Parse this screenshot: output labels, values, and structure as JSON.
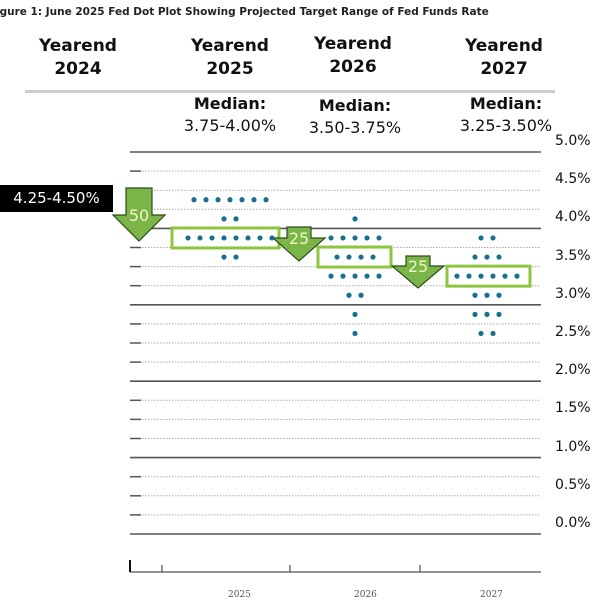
{
  "title": "igure 1: June 2025 Fed Dot Plot Showing Projected Target Range of Fed Funds Rate",
  "headers": [
    {
      "line1": "Yearend",
      "line2": "2024"
    },
    {
      "line1": "Yearend",
      "line2": "2025",
      "median_label": "Median:",
      "median": "3.75-4.00%"
    },
    {
      "line1": "Yearend",
      "line2": "2026",
      "median_label": "Median:",
      "median": "3.50-3.75%"
    },
    {
      "line1": "Yearend",
      "line2": "2027",
      "median_label": "Median:",
      "median": "3.25-3.50%"
    }
  ],
  "current_range": "4.25-4.50%",
  "arrows": [
    "50",
    "25",
    "25"
  ],
  "colors": {
    "dot": "#1b6f8e",
    "green": "#8cc63f",
    "arrow": "#7bb547"
  },
  "chart_data": {
    "type": "scatter",
    "title": "June 2025 Fed Dot Plot Showing Projected Target Range of Fed Funds Rate",
    "ylabel": "",
    "xlabel": "",
    "ylim": [
      0,
      5
    ],
    "ytick_labels": [
      "5.0%",
      "4.5%",
      "4.0%",
      "3.5%",
      "3.0%",
      "2.5%",
      "2.0%",
      "1.5%",
      "1.0%",
      "0.5%",
      "0.0%"
    ],
    "yticks": [
      5,
      4.5,
      4,
      3.5,
      3,
      2.5,
      2,
      1.5,
      1,
      0.5,
      0
    ],
    "categories": [
      "2025",
      "2026",
      "2027"
    ],
    "dots": [
      {
        "year": "2025",
        "counts": [
          [
            4.375,
            7
          ],
          [
            4.125,
            2
          ],
          [
            3.875,
            8
          ],
          [
            3.625,
            2
          ]
        ],
        "median": 3.875
      },
      {
        "year": "2026",
        "counts": [
          [
            4.125,
            1
          ],
          [
            3.875,
            5
          ],
          [
            3.625,
            4
          ],
          [
            3.375,
            5
          ],
          [
            3.125,
            2
          ],
          [
            2.875,
            1
          ],
          [
            2.625,
            1
          ]
        ],
        "median": 3.625
      },
      {
        "year": "2027",
        "counts": [
          [
            3.875,
            2
          ],
          [
            3.625,
            3
          ],
          [
            3.375,
            6
          ],
          [
            3.125,
            3
          ],
          [
            2.875,
            3
          ],
          [
            2.625,
            2
          ]
        ],
        "median": 3.375
      }
    ],
    "grid": true
  }
}
